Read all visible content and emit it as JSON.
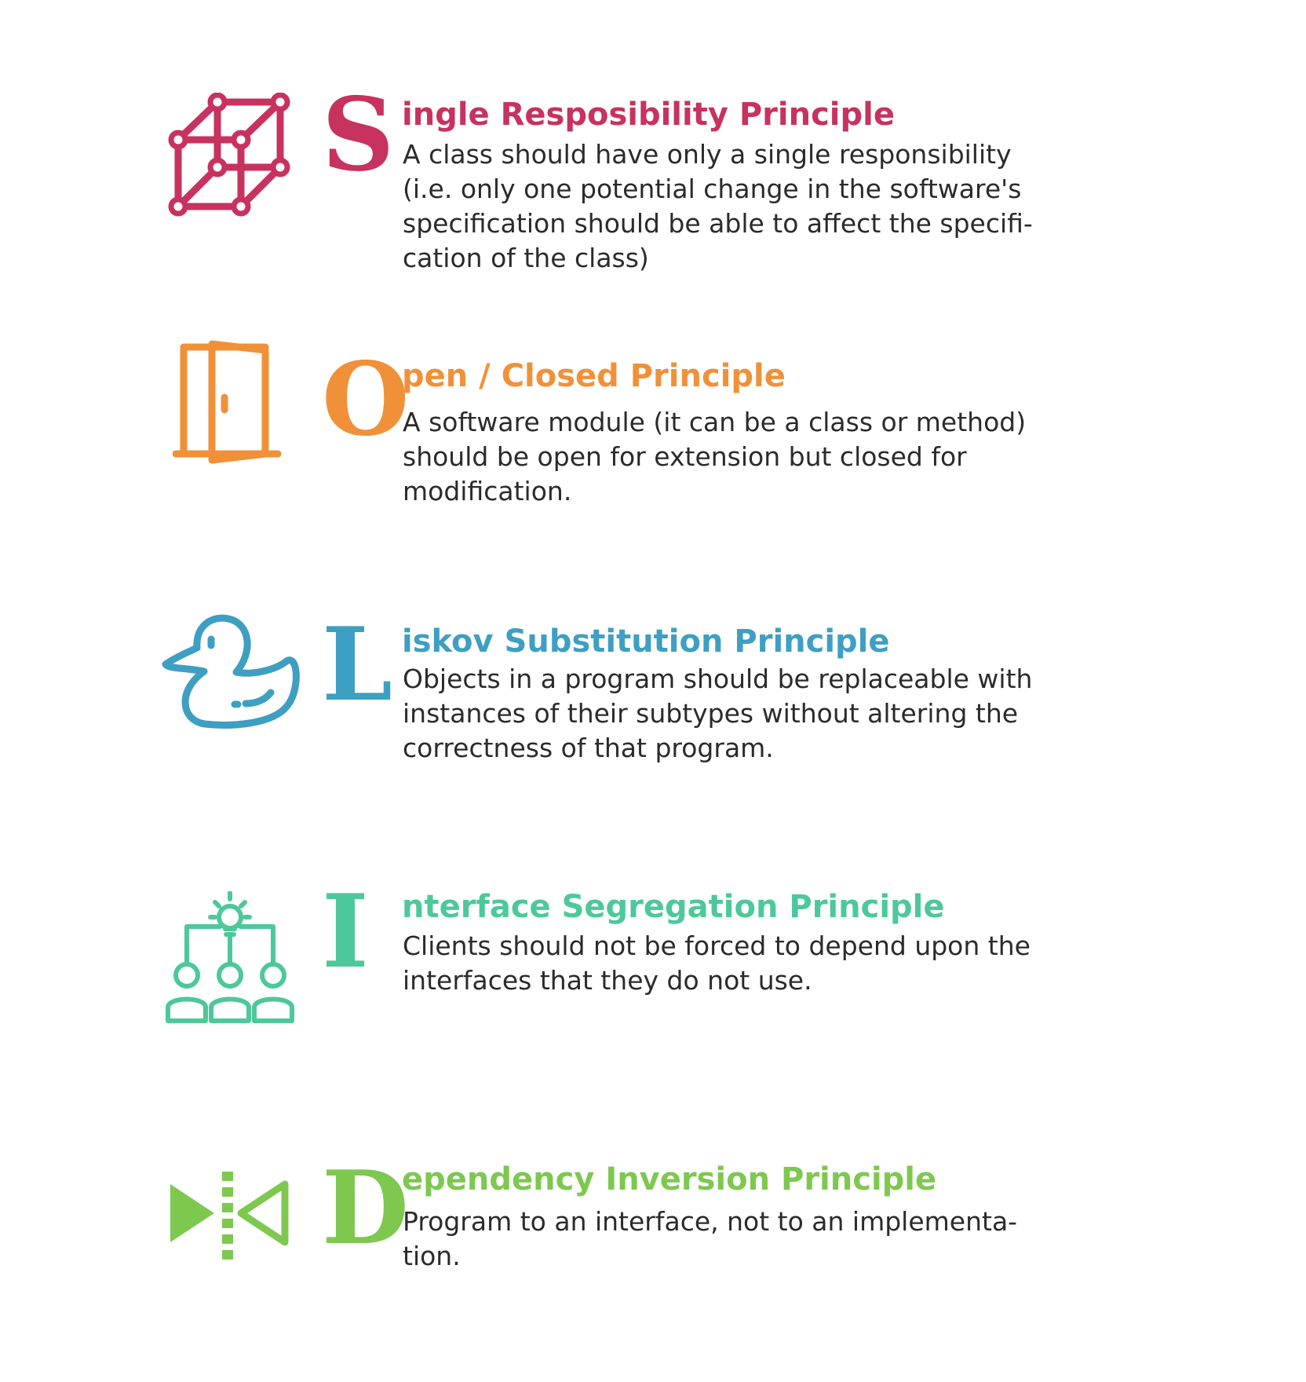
{
  "colors": {
    "srp": "#c8325e",
    "ocp": "#f0913a",
    "lsp": "#3e9fc3",
    "isp": "#4dc89a",
    "dip": "#7ec850"
  },
  "principles": [
    {
      "letter": "S",
      "title": "ingle Resposibility Principle",
      "description": "A class should have only a single responsibility\n(i.e. only one potential change in the software's\nspecification should be able to affect the specifi-\ncation of the class)",
      "icon": "cube-icon"
    },
    {
      "letter": "O",
      "title": "pen / Closed Principle",
      "description": "A software module (it can be a class or method)\nshould be open for extension but closed for\nmodification.",
      "icon": "open-door-icon"
    },
    {
      "letter": "L",
      "title": "iskov Substitution Principle",
      "description": "Objects in a program should be replaceable with\ninstances of their subtypes without altering the\ncorrectness of that program.",
      "icon": "rubber-duck-icon"
    },
    {
      "letter": "I",
      "title": "nterface Segregation Principle",
      "description": "Clients should not be forced to depend upon the\ninterfaces that they do not use.",
      "icon": "idea-team-icon"
    },
    {
      "letter": "D",
      "title": "ependency Inversion Principle",
      "description": "Program to an interface, not to an implementa-\ntion.",
      "icon": "inversion-arrows-icon"
    }
  ]
}
